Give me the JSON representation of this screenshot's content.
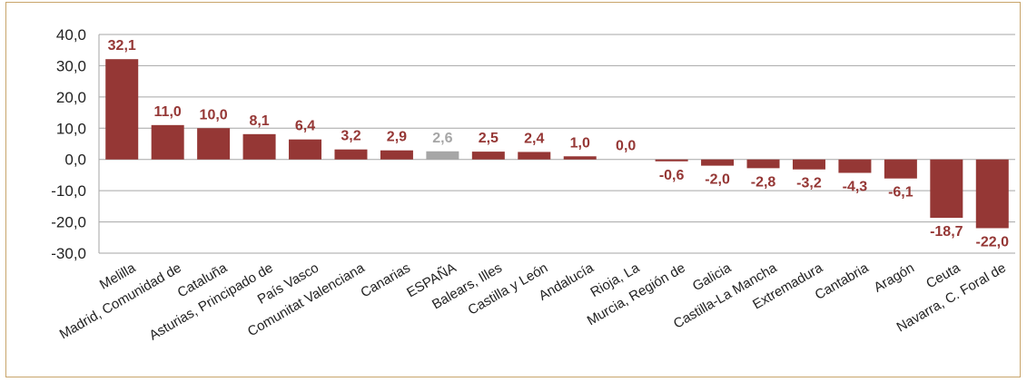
{
  "chart_data": {
    "type": "bar",
    "title": "",
    "xlabel": "",
    "ylabel": "",
    "ylim": [
      -30,
      40
    ],
    "yticks": [
      "40,0",
      "30,0",
      "20,0",
      "10,0",
      "0,0",
      "-10,0",
      "-20,0",
      "-30,0"
    ],
    "ytick_values": [
      40,
      30,
      20,
      10,
      0,
      -10,
      -20,
      -30
    ],
    "grid": true,
    "legend": "none",
    "colors": {
      "bar": "#953735",
      "highlight": "#a6a6a6",
      "highlight_label": "#a6a6a6",
      "label": "#953735",
      "grid": "#a6a6a6"
    },
    "highlight_category": "ESPAÑA",
    "categories": [
      "Melilla",
      "Madrid, Comunidad de",
      "Cataluña",
      "Asturias, Principado de",
      "País Vasco",
      "Comunitat Valenciana",
      "Canarias",
      "ESPAÑA",
      "Balears, Illes",
      "Castilla y León",
      "Andalucía",
      "Rioja, La",
      "Murcia, Región de",
      "Galicia",
      "Castilla-La Mancha",
      "Extremadura",
      "Cantabria",
      "Aragón",
      "Ceuta",
      "Navarra, C. Foral de"
    ],
    "values": [
      32.1,
      11.0,
      10.0,
      8.1,
      6.4,
      3.2,
      2.9,
      2.6,
      2.5,
      2.4,
      1.0,
      0.0,
      -0.6,
      -2.0,
      -2.8,
      -3.2,
      -4.3,
      -6.1,
      -18.7,
      -22.0
    ],
    "value_labels": [
      "32,1",
      "11,0",
      "10,0",
      "8,1",
      "6,4",
      "3,2",
      "2,9",
      "2,6",
      "2,5",
      "2,4",
      "1,0",
      "0,0",
      "-0,6",
      "-2,0",
      "-2,8",
      "-3,2",
      "-4,3",
      "-6,1",
      "-18,7",
      "-22,0"
    ]
  }
}
